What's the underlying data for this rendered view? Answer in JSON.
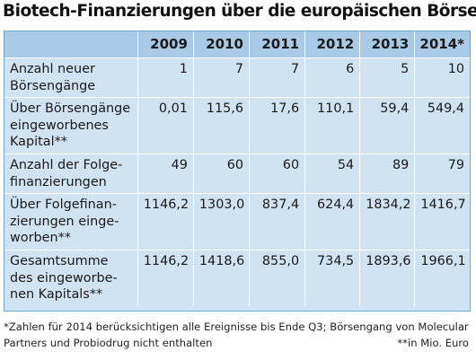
{
  "title": "Biotech-Finanzierungen über die europäischen Börsen",
  "chart_data": {
    "type": "table",
    "title": "Biotech-Finanzierungen über die europäischen Börsen",
    "columns": [
      "2009",
      "2010",
      "2011",
      "2012",
      "2013",
      "2014*"
    ],
    "rows": [
      {
        "label": "Anzahl neuer Börsengänge",
        "values": [
          "1",
          "7",
          "7",
          "6",
          "5",
          "10"
        ]
      },
      {
        "label": "Über Börsengänge eingeworbenes Kapital**",
        "values": [
          "0,01",
          "115,6",
          "17,6",
          "110,1",
          "59,4",
          "549,4"
        ]
      },
      {
        "label": "Anzahl der Folgefinanzierungen",
        "values": [
          "49",
          "60",
          "60",
          "54",
          "89",
          "79"
        ]
      },
      {
        "label": "Über Folgefinanzierungen eingeworben**",
        "values": [
          "1146,2",
          "1303,0",
          "837,4",
          "624,4",
          "1834,2",
          "1416,7"
        ]
      },
      {
        "label": "Gesamtsumme des eingeworbenen Kapitals**",
        "values": [
          "1146,2",
          "1418,6",
          "855,0",
          "734,5",
          "1893,6",
          "1966,1"
        ]
      }
    ]
  },
  "table": {
    "header_first": "",
    "row_labels_display": [
      [
        "Anzahl neuer",
        "Börsengänge"
      ],
      [
        "Über Börsengänge",
        "eingeworbenes",
        "Kapital**"
      ],
      [
        "Anzahl der Folge-",
        "finanzierungen"
      ],
      [
        "Über Folgefinan-",
        "zierungen einge-",
        "worben**"
      ],
      [
        "Gesamtsumme",
        "des eingeworbe-",
        "nen Kapitals**"
      ]
    ]
  },
  "footnotes": {
    "line1": "*Zahlen für 2014 berücksichtigen alle Ereignisse bis Ende Q3; Börsengang von Molecular",
    "line2_left": "Partners und Probiodrug nicht enthalten",
    "line2_right": "**in Mio. Euro"
  },
  "colors": {
    "header_bg": "#a8cae6",
    "body_bg": "#cfe3f3",
    "border": "#6fa6cf"
  }
}
